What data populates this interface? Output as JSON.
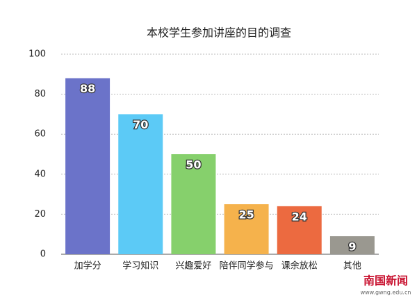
{
  "chart_data": {
    "type": "bar",
    "title": "本校学生参加讲座的目的调查",
    "categories": [
      "加学分",
      "学习知识",
      "兴趣爱好",
      "陪伴同学参与",
      "课余放松",
      "其他"
    ],
    "values": [
      88,
      70,
      50,
      25,
      24,
      9
    ],
    "colors": [
      "#6b73c9",
      "#5ccaf6",
      "#86d06c",
      "#f5b24c",
      "#ec6a40",
      "#9a9890"
    ],
    "ylim": [
      0,
      100
    ],
    "yticks": [
      0,
      20,
      40,
      60,
      80,
      100
    ],
    "grid": true
  },
  "watermark": {
    "name": "南国新闻",
    "url": "www.gwng.edu.cn"
  }
}
